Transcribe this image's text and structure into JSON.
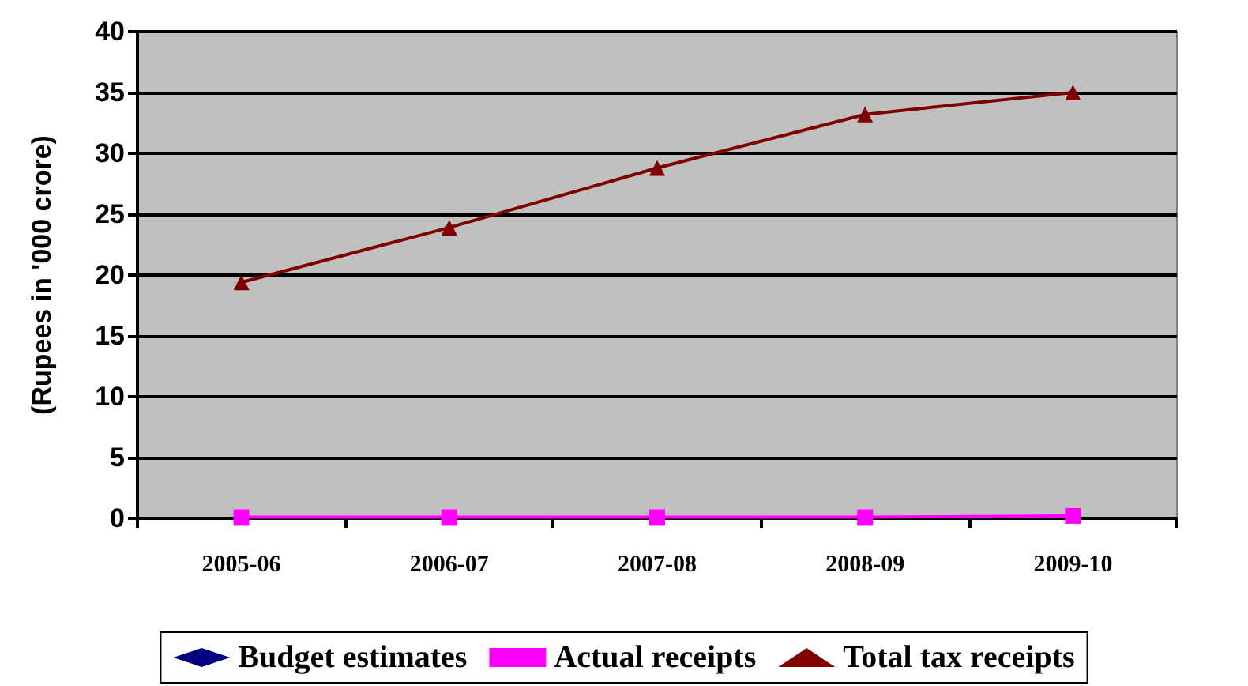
{
  "chart_data": {
    "type": "line",
    "ylabel": "(Rupees in '000 crore)",
    "categories": [
      "2005-06",
      "2006-07",
      "2007-08",
      "2008-09",
      "2009-10"
    ],
    "series": [
      {
        "name": "Budget estimates",
        "color": "#000080",
        "marker": "diamond",
        "values": [
          null,
          null,
          null,
          null,
          null
        ]
      },
      {
        "name": "Actual receipts",
        "color": "#ff00ff",
        "marker": "square",
        "values": [
          0.1,
          0.1,
          0.1,
          0.1,
          0.2
        ]
      },
      {
        "name": "Total tax receipts",
        "color": "#800000",
        "marker": "triangle",
        "values": [
          19.4,
          23.9,
          28.8,
          33.2,
          35
        ]
      }
    ],
    "ylim": [
      0,
      40
    ],
    "yticks": [
      0,
      5,
      10,
      15,
      20,
      25,
      30,
      35,
      40
    ],
    "grid": "y",
    "legend": "bottom",
    "line_style": "solid"
  }
}
